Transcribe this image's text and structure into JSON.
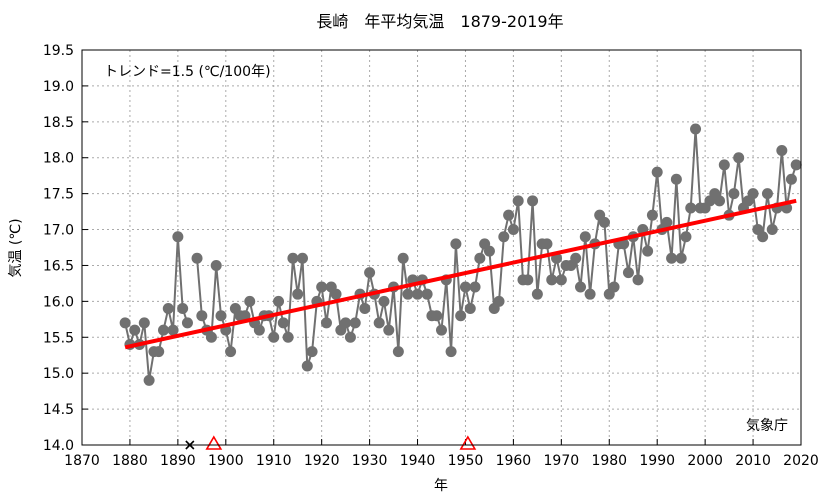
{
  "chart_data": {
    "type": "line",
    "title": "長崎　年平均気温　1879-2019年",
    "xlabel": "年",
    "ylabel": "気温 (℃)",
    "xlim": [
      1870,
      2020
    ],
    "ylim": [
      14.0,
      19.5
    ],
    "xticks": [
      1870,
      1880,
      1890,
      1900,
      1910,
      1920,
      1930,
      1940,
      1950,
      1960,
      1970,
      1980,
      1990,
      2000,
      2010,
      2020
    ],
    "yticks": [
      "14.0",
      "14.5",
      "15.0",
      "15.5",
      "16.0",
      "16.5",
      "17.0",
      "17.5",
      "18.0",
      "18.5",
      "19.0",
      "19.5"
    ],
    "grid": true,
    "annotation_trend": "トレンド=1.5 (℃/100年)",
    "source_label": "気象庁",
    "series": [
      {
        "name": "年平均気温",
        "color": "#707070",
        "start_year": 1879,
        "values": [
          15.7,
          15.4,
          15.6,
          15.4,
          15.7,
          14.9,
          15.3,
          15.3,
          15.6,
          15.9,
          15.6,
          16.9,
          15.9,
          15.7,
          null,
          16.6,
          15.8,
          15.6,
          15.5,
          16.5,
          15.8,
          15.6,
          15.3,
          15.9,
          15.8,
          15.8,
          16.0,
          15.7,
          15.6,
          15.8,
          15.8,
          15.5,
          16.0,
          15.7,
          15.5,
          16.6,
          16.1,
          16.6,
          15.1,
          15.3,
          16.0,
          16.2,
          15.7,
          16.2,
          16.1,
          15.6,
          15.7,
          15.5,
          15.7,
          16.1,
          15.9,
          16.4,
          16.1,
          15.7,
          16.0,
          15.6,
          16.2,
          15.3,
          16.6,
          16.1,
          16.3,
          16.1,
          16.3,
          16.1,
          15.8,
          15.8,
          15.6,
          16.3,
          15.3,
          16.8,
          15.8,
          16.2,
          15.9,
          16.2,
          16.6,
          16.8,
          16.7,
          15.9,
          16.0,
          16.9,
          17.2,
          17.0,
          17.4,
          16.3,
          16.3,
          17.4,
          16.1,
          16.8,
          16.8,
          16.3,
          16.6,
          16.3,
          16.5,
          16.5,
          16.6,
          16.2,
          16.9,
          16.1,
          16.8,
          17.2,
          17.1,
          16.1,
          16.2,
          16.8,
          16.8,
          16.4,
          16.9,
          16.3,
          17.0,
          16.7,
          17.2,
          17.8,
          17.0,
          17.1,
          16.6,
          17.7,
          16.6,
          16.9,
          17.3,
          18.4,
          17.3,
          17.3,
          17.4,
          17.5,
          17.4,
          17.9,
          17.2,
          17.5,
          18.0,
          17.3,
          17.4,
          17.5,
          17.0,
          16.9,
          17.5,
          17.0,
          17.3,
          18.1,
          17.3,
          17.7,
          17.9
        ]
      }
    ],
    "trend": {
      "color": "#ff0000",
      "x": [
        1879,
        2019
      ],
      "y": [
        15.36,
        17.4
      ]
    },
    "markers": [
      {
        "type": "station-change-cross",
        "year": 1892.5,
        "color": "#000000"
      },
      {
        "type": "relocation-triangle",
        "year": 1897.5,
        "color": "#ff0000"
      },
      {
        "type": "relocation-triangle",
        "year": 1950.5,
        "color": "#ff0000"
      }
    ]
  }
}
